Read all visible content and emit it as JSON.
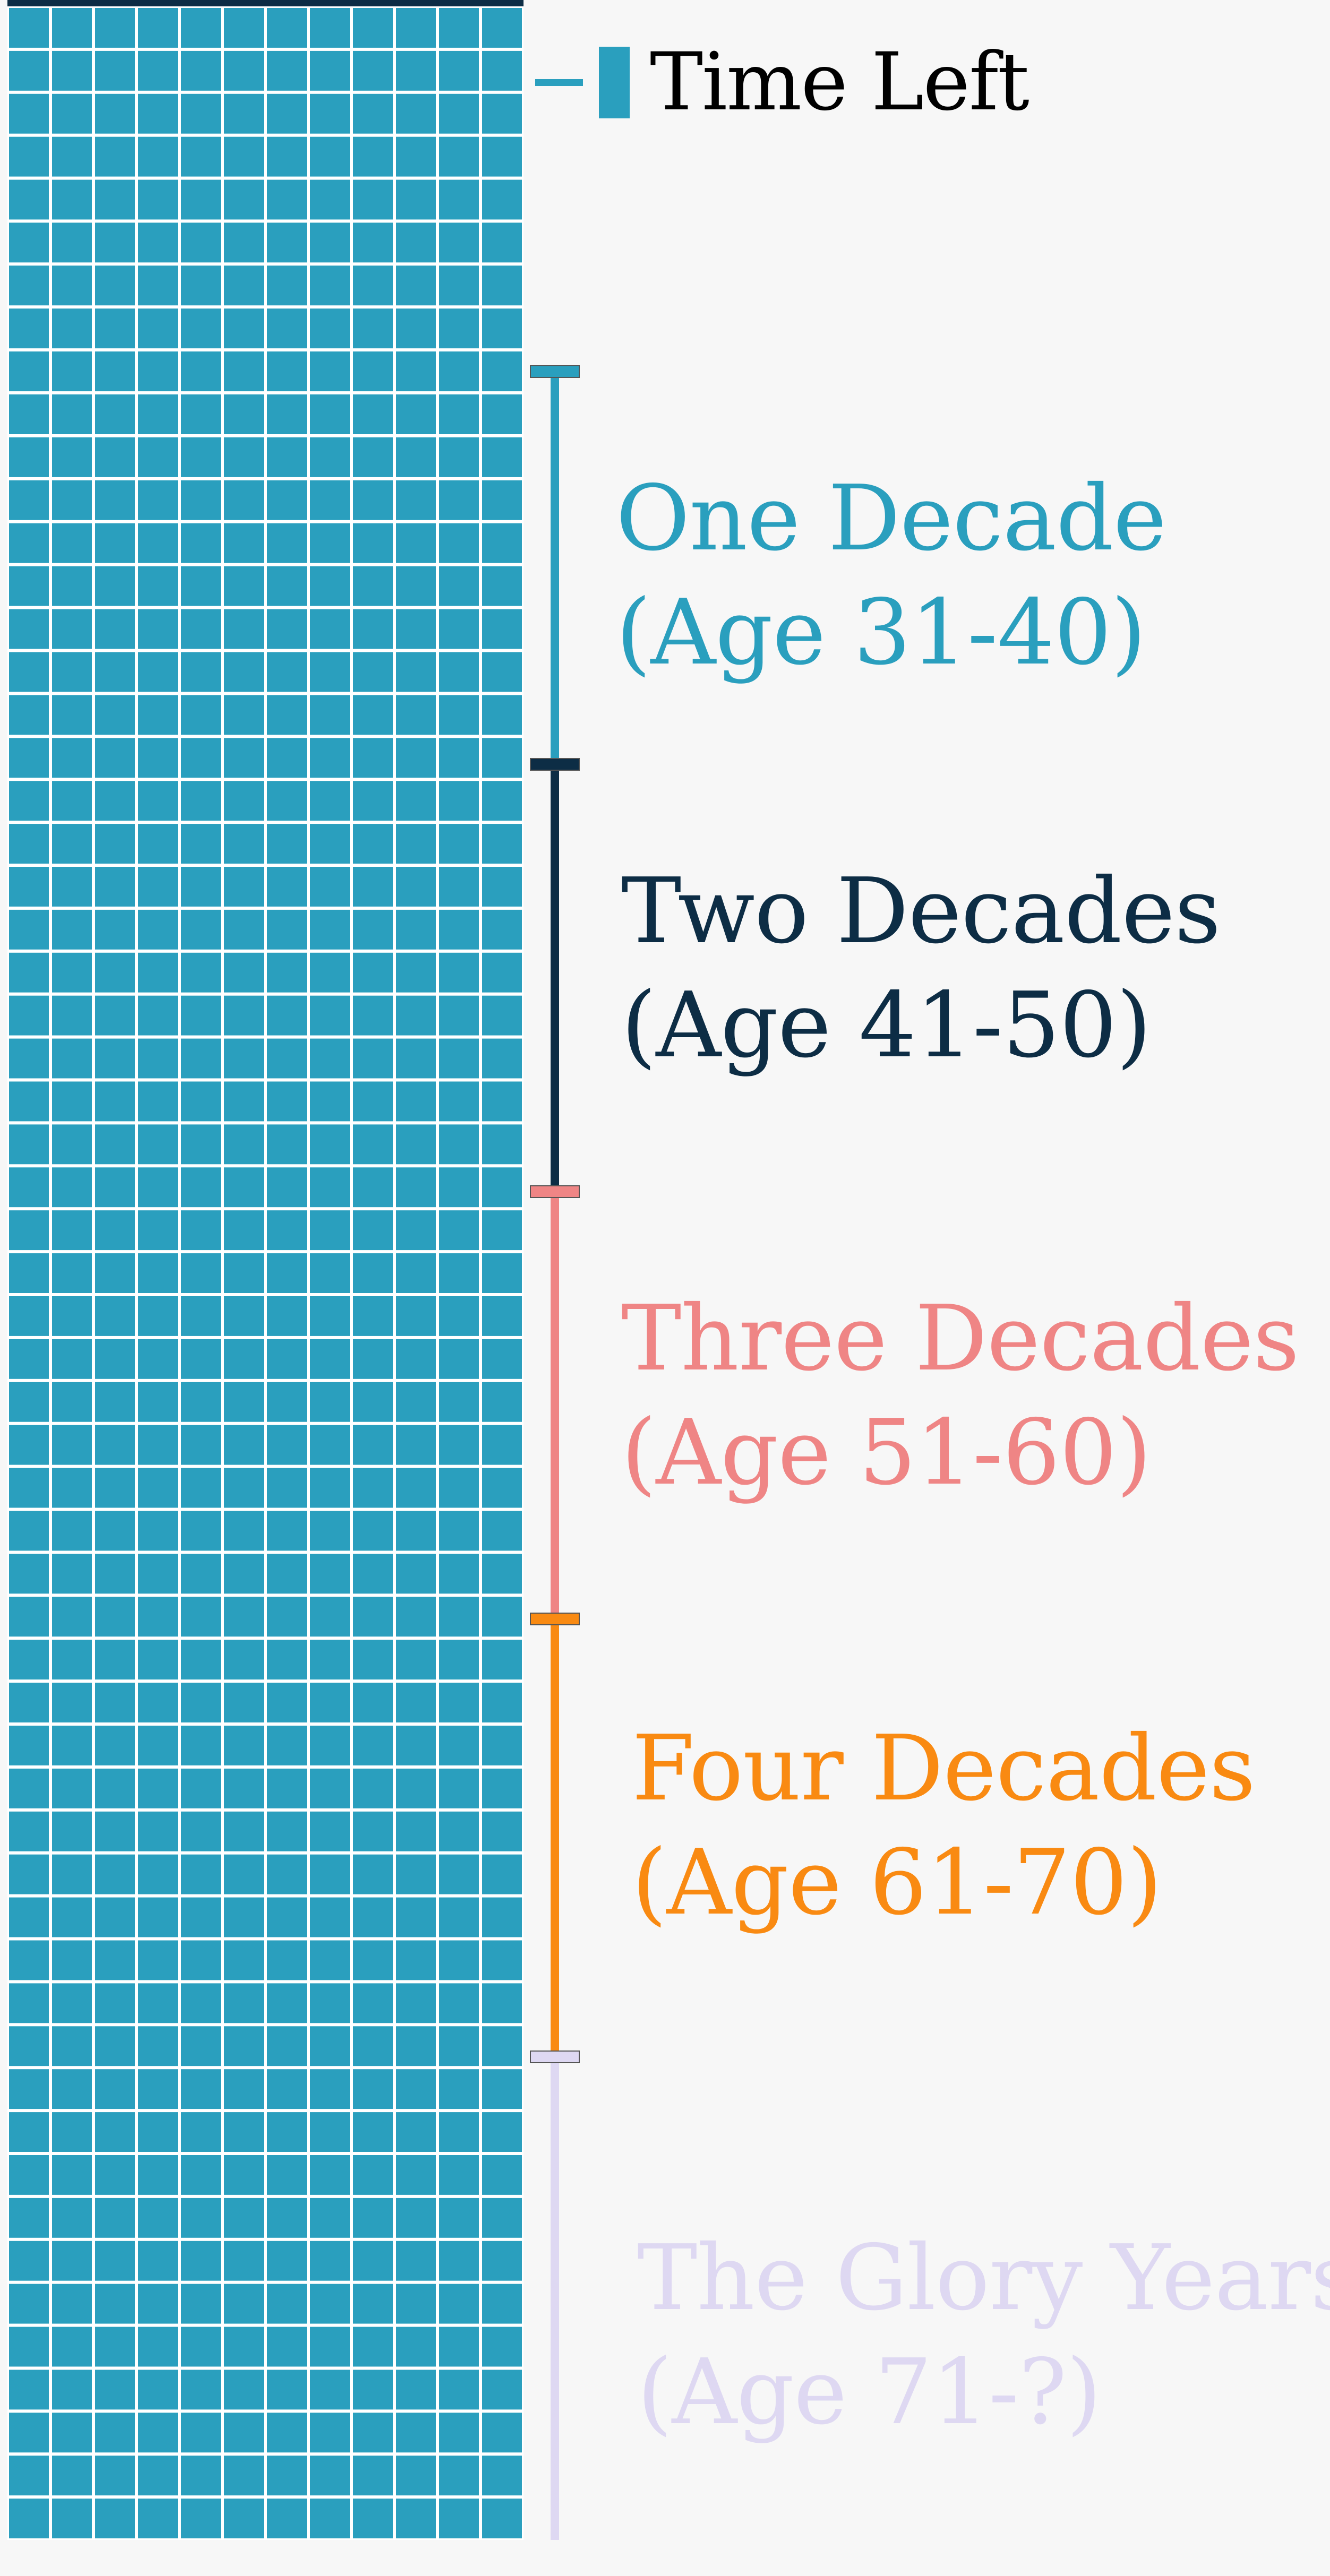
{
  "legend": {
    "label": "Time Left",
    "color": "#2a9fbe"
  },
  "grid": {
    "cell_color": "#2a9fbe",
    "line_color": "#ffffff",
    "past_color": "#0d2d45",
    "columns": 12
  },
  "segments": [
    {
      "title": "One Decade",
      "subtitle": "(Age 31-40)",
      "color": "#2a9fbe"
    },
    {
      "title": "Two Decades",
      "subtitle": "(Age 41-50)",
      "color": "#0d2d45"
    },
    {
      "title": "Three Decades",
      "subtitle": "(Age 51-60)",
      "color": "#ef8585"
    },
    {
      "title": "Four Decades",
      "subtitle": "(Age 61-70)",
      "color": "#f98a12"
    },
    {
      "title": "The Glory Years",
      "subtitle": "(Age 71-?)",
      "color": "#ded8f2"
    }
  ]
}
